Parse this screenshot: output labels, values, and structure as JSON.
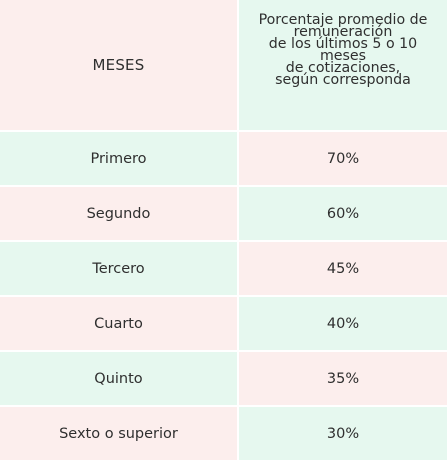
{
  "table": {
    "header": {
      "col1": "MESES",
      "col2_lines": [
        "Porcentaje promedio de",
        "remuneración",
        "de los últimos 5 o 10",
        "meses",
        "de cotizaciones,",
        "según corresponda"
      ]
    },
    "rows": [
      {
        "month": "Primero",
        "percent": "70%"
      },
      {
        "month": "Segundo",
        "percent": "60%"
      },
      {
        "month": "Tercero",
        "percent": "45%"
      },
      {
        "month": "Cuarto",
        "percent": "40%"
      },
      {
        "month": "Quinto",
        "percent": "35%"
      },
      {
        "month": "Sexto o superior",
        "percent": "30%"
      }
    ]
  },
  "colors": {
    "pink": "#fceeed",
    "mint": "#e6f8ef",
    "text": "#2f2f2f"
  }
}
